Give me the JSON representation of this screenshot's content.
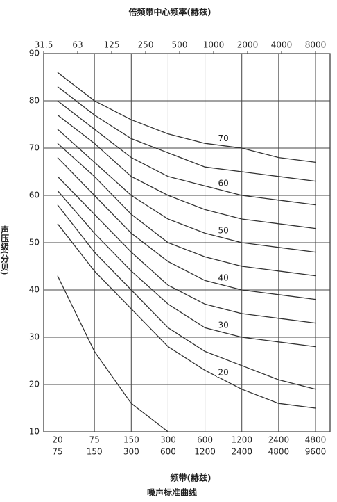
{
  "chart_data": {
    "type": "line",
    "title": "倍频带中心频率(赫兹)",
    "x2_labels": [
      "31.5",
      "63",
      "125",
      "250",
      "500",
      "1000",
      "2000",
      "4000",
      "8000"
    ],
    "xlabel": "频带(赫兹)",
    "ylabel": "声压级(分贝)",
    "caption": "噪声标准曲线",
    "categories": [
      [
        "20",
        "75"
      ],
      [
        "75",
        "150"
      ],
      [
        "150",
        "300"
      ],
      [
        "300",
        "600"
      ],
      [
        "600",
        "1200"
      ],
      [
        "1200",
        "2400"
      ],
      [
        "2400",
        "4800"
      ],
      [
        "4800",
        "9600"
      ]
    ],
    "ylim": [
      10,
      90
    ],
    "yticks": [
      10,
      20,
      30,
      40,
      50,
      60,
      70,
      80,
      90
    ],
    "grid": true,
    "series": [
      {
        "name": "70",
        "color": "#333333",
        "values": [
          86,
          80,
          76,
          73,
          71,
          70,
          68,
          67
        ]
      },
      {
        "color": "#333333",
        "values": [
          83,
          77,
          72,
          69,
          66,
          65,
          64,
          63
        ]
      },
      {
        "name": "60",
        "color": "#333333",
        "values": [
          80,
          74,
          68,
          64,
          62,
          60,
          59,
          58
        ]
      },
      {
        "color": "#333333",
        "values": [
          77,
          71,
          64,
          60,
          57,
          55,
          54,
          53
        ]
      },
      {
        "name": "50",
        "color": "#333333",
        "values": [
          74,
          67,
          60,
          55,
          52,
          50,
          49,
          48
        ]
      },
      {
        "color": "#333333",
        "values": [
          71,
          64,
          56,
          50,
          47,
          45,
          44,
          43
        ]
      },
      {
        "name": "40",
        "color": "#333333",
        "values": [
          68,
          60,
          52,
          46,
          42,
          40,
          39,
          38
        ]
      },
      {
        "color": "#333333",
        "values": [
          64,
          56,
          48,
          41,
          37,
          35,
          34,
          33
        ]
      },
      {
        "name": "30",
        "color": "#333333",
        "values": [
          61,
          52,
          44,
          37,
          32,
          30,
          29,
          28
        ]
      },
      {
        "color": "#333333",
        "values": [
          58,
          48,
          40,
          32,
          27,
          24,
          21,
          19
        ]
      },
      {
        "name": "20",
        "color": "#333333",
        "values": [
          54,
          44,
          36,
          28,
          23,
          19,
          16,
          15
        ]
      },
      {
        "color": "#333333",
        "values": [
          43,
          27,
          16,
          10,
          null,
          null,
          null,
          null
        ]
      }
    ]
  }
}
